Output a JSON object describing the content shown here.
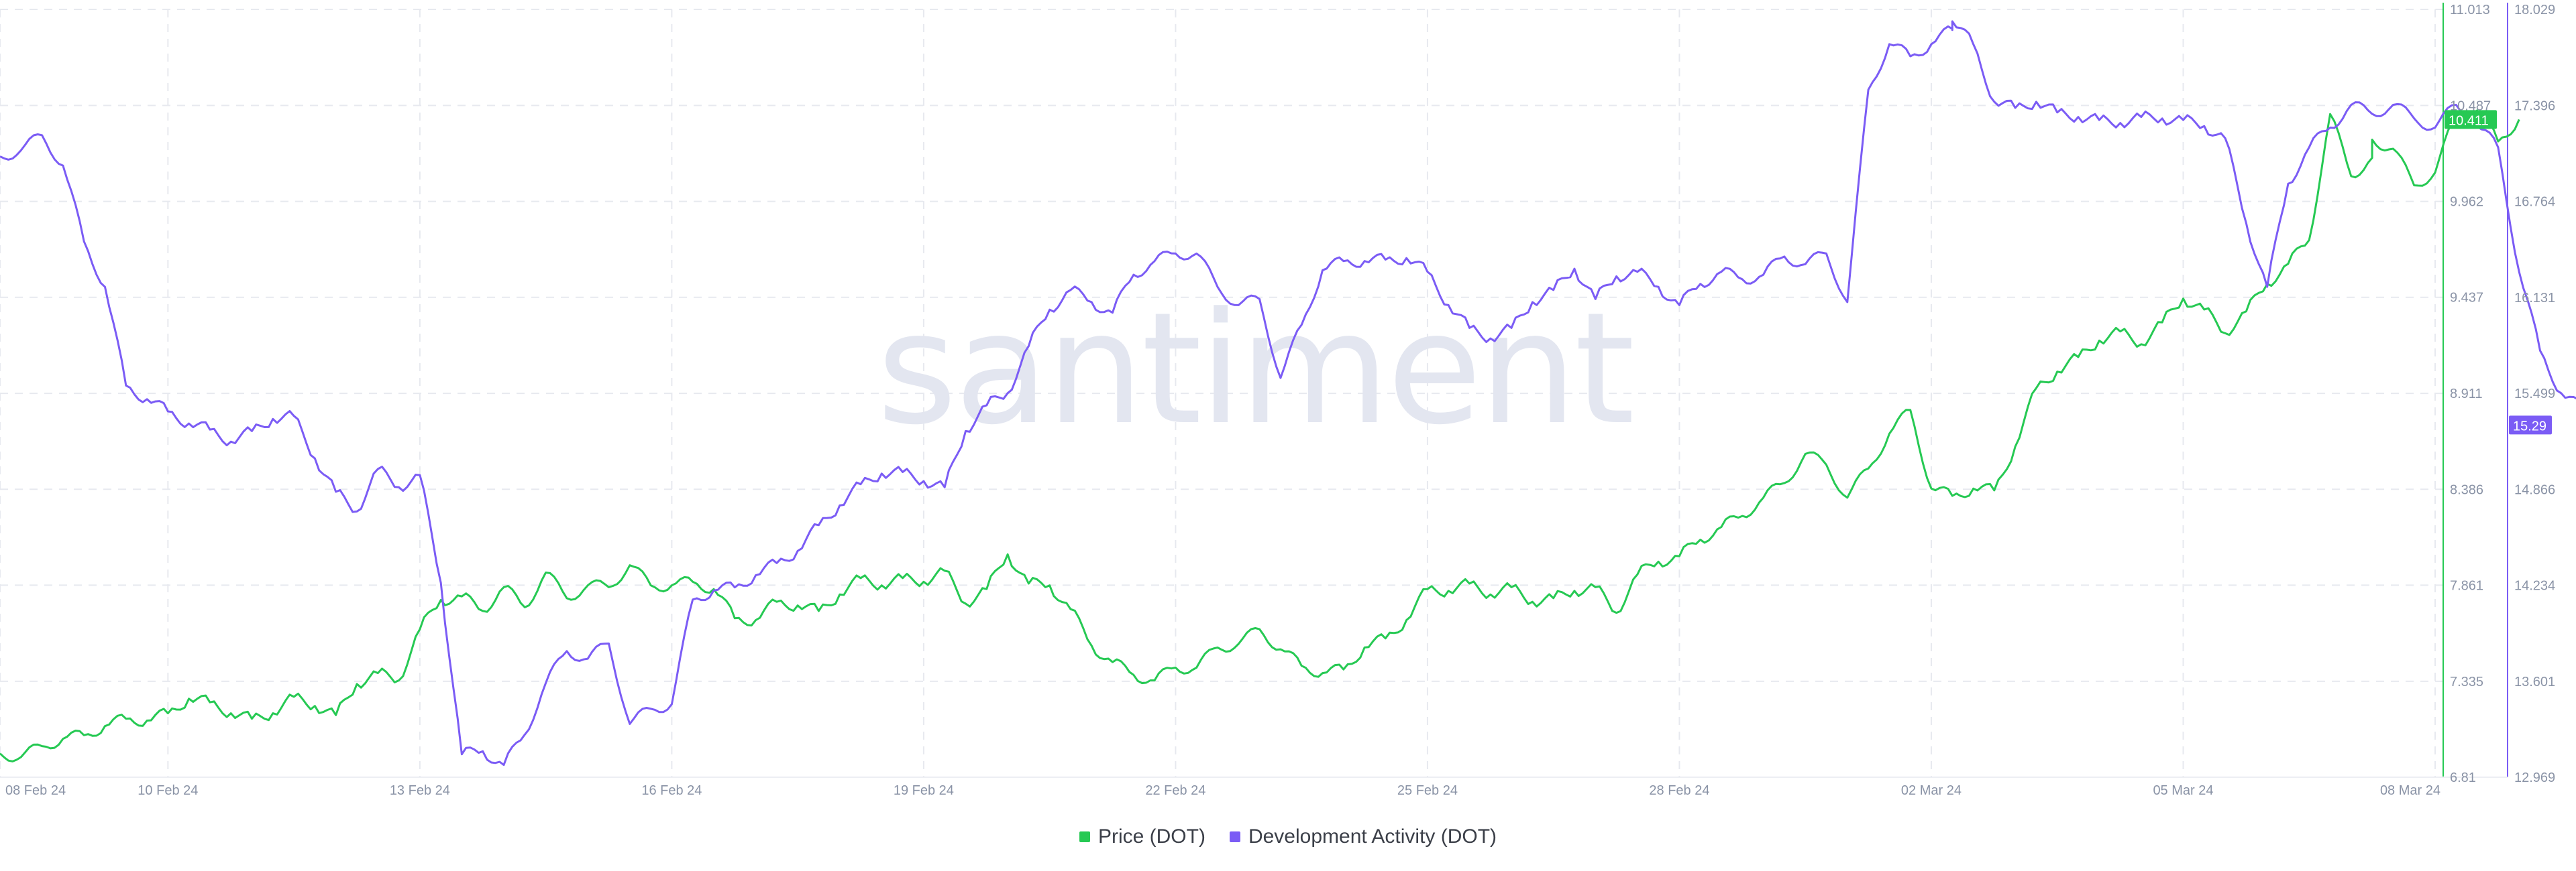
{
  "chart_data": {
    "type": "line",
    "watermark": "santiment",
    "x_axis": {
      "range": [
        "2024-02-08",
        "2024-03-08"
      ],
      "tick_labels": [
        "08 Feb 24",
        "10 Feb 24",
        "13 Feb 24",
        "16 Feb 24",
        "19 Feb 24",
        "22 Feb 24",
        "25 Feb 24",
        "28 Feb 24",
        "02 Mar 24",
        "05 Mar 24",
        "08 Mar 24"
      ],
      "grid": true
    },
    "y_axes": [
      {
        "id": "price",
        "ticks": [
          "11.013",
          "10.487",
          "9.962",
          "9.437",
          "8.911",
          "8.386",
          "7.861",
          "7.335",
          "6.81"
        ],
        "range": [
          6.81,
          11.013
        ],
        "color": "#26c953"
      },
      {
        "id": "dev",
        "ticks": [
          "18.029",
          "17.396",
          "16.764",
          "16.131",
          "15.499",
          "14.866",
          "14.234",
          "13.601",
          "12.969"
        ],
        "range": [
          12.969,
          18.029
        ],
        "color": "#7b5cf5"
      }
    ],
    "legend_position": "bottom-center",
    "series": [
      {
        "name": "Price (DOT)",
        "axis": "price",
        "color": "#26c953",
        "last_value_label": "10.411",
        "points": [
          [
            0,
            6.94
          ],
          [
            0.25,
            6.92
          ],
          [
            0.5,
            6.98
          ],
          [
            0.75,
            7.02
          ],
          [
            1,
            7.04
          ],
          [
            1.25,
            7.09
          ],
          [
            1.5,
            7.13
          ],
          [
            1.75,
            7.12
          ],
          [
            2,
            7.16
          ],
          [
            2.25,
            7.24
          ],
          [
            2.5,
            7.22
          ],
          [
            2.75,
            7.16
          ],
          [
            3,
            7.13
          ],
          [
            3.25,
            7.16
          ],
          [
            3.5,
            7.25
          ],
          [
            3.75,
            7.2
          ],
          [
            4,
            7.15
          ],
          [
            4.25,
            7.32
          ],
          [
            4.5,
            7.38
          ],
          [
            4.75,
            7.34
          ],
          [
            5,
            7.62
          ],
          [
            5.25,
            7.78
          ],
          [
            5.5,
            7.8
          ],
          [
            5.75,
            7.72
          ],
          [
            6,
            7.85
          ],
          [
            6.25,
            7.74
          ],
          [
            6.5,
            7.93
          ],
          [
            6.75,
            7.79
          ],
          [
            7,
            7.86
          ],
          [
            7.25,
            7.85
          ],
          [
            7.5,
            7.97
          ],
          [
            7.75,
            7.86
          ],
          [
            8,
            7.86
          ],
          [
            8.25,
            7.88
          ],
          [
            8.5,
            7.84
          ],
          [
            8.75,
            7.68
          ],
          [
            9,
            7.67
          ],
          [
            9.25,
            7.77
          ],
          [
            9.5,
            7.75
          ],
          [
            9.75,
            7.72
          ],
          [
            10,
            7.81
          ],
          [
            10.25,
            7.9
          ],
          [
            10.5,
            7.86
          ],
          [
            10.75,
            7.9
          ],
          [
            11,
            7.88
          ],
          [
            11.25,
            7.94
          ],
          [
            11.5,
            7.76
          ],
          [
            11.75,
            7.84
          ],
          [
            12,
            8.03
          ],
          [
            12.25,
            7.87
          ],
          [
            12.5,
            7.86
          ],
          [
            12.75,
            7.73
          ],
          [
            13,
            7.53
          ],
          [
            13.25,
            7.44
          ],
          [
            13.5,
            7.37
          ],
          [
            13.75,
            7.34
          ],
          [
            14,
            7.41
          ],
          [
            14.25,
            7.41
          ],
          [
            14.5,
            7.52
          ],
          [
            14.75,
            7.54
          ],
          [
            15,
            7.62
          ],
          [
            15.25,
            7.51
          ],
          [
            15.5,
            7.42
          ],
          [
            15.75,
            7.38
          ],
          [
            16,
            7.4
          ],
          [
            16.25,
            7.52
          ],
          [
            16.5,
            7.57
          ],
          [
            16.75,
            7.67
          ],
          [
            17,
            7.84
          ],
          [
            17.25,
            7.83
          ],
          [
            17.5,
            7.87
          ],
          [
            17.75,
            7.81
          ],
          [
            18,
            7.85
          ],
          [
            18.25,
            7.77
          ],
          [
            18.5,
            7.79
          ],
          [
            18.75,
            7.83
          ],
          [
            19,
            7.85
          ],
          [
            19.25,
            7.71
          ],
          [
            19.5,
            7.92
          ],
          [
            19.75,
            7.99
          ],
          [
            20,
            8.02
          ],
          [
            20.25,
            8.11
          ],
          [
            20.5,
            8.18
          ],
          [
            20.75,
            8.24
          ],
          [
            21,
            8.34
          ],
          [
            21.25,
            8.42
          ],
          [
            21.5,
            8.58
          ],
          [
            21.75,
            8.52
          ],
          [
            22,
            8.34
          ],
          [
            22.25,
            8.5
          ],
          [
            22.5,
            8.69
          ],
          [
            22.75,
            8.82
          ],
          [
            23,
            8.39
          ],
          [
            23.25,
            8.35
          ],
          [
            23.5,
            8.39
          ],
          [
            23.75,
            8.38
          ],
          [
            24,
            8.62
          ],
          [
            24.25,
            8.94
          ],
          [
            24.5,
            9.03
          ],
          [
            24.75,
            9.11
          ],
          [
            25,
            9.2
          ],
          [
            25.25,
            9.25
          ],
          [
            25.5,
            9.18
          ],
          [
            25.75,
            9.3
          ],
          [
            26,
            9.43
          ],
          [
            26.25,
            9.37
          ],
          [
            26.5,
            9.24
          ],
          [
            26.75,
            9.36
          ],
          [
            27,
            9.51
          ],
          [
            27.25,
            9.62
          ],
          [
            27.5,
            9.75
          ],
          [
            27.75,
            10.44
          ],
          [
            28,
            10.1
          ],
          [
            28.25,
            10.2
          ],
          [
            28.25,
            10.3
          ],
          [
            28.5,
            10.25
          ],
          [
            28.75,
            10.05
          ],
          [
            29,
            10.12
          ],
          [
            29.25,
            10.44
          ],
          [
            29.5,
            10.46
          ],
          [
            29.75,
            10.29
          ],
          [
            30,
            10.41
          ]
        ]
      },
      {
        "name": "Development Activity (DOT)",
        "axis": "dev",
        "color": "#7b5cf5",
        "last_value_label": "15.29",
        "points": [
          [
            0,
            17.06
          ],
          [
            0.25,
            17.1
          ],
          [
            0.5,
            17.2
          ],
          [
            0.75,
            17.0
          ],
          [
            1,
            16.5
          ],
          [
            1.25,
            16.2
          ],
          [
            1.5,
            15.55
          ],
          [
            1.75,
            15.46
          ],
          [
            2,
            15.38
          ],
          [
            2.25,
            15.3
          ],
          [
            2.5,
            15.26
          ],
          [
            2.75,
            15.18
          ],
          [
            3,
            15.25
          ],
          [
            3.25,
            15.33
          ],
          [
            3.5,
            15.35
          ],
          [
            3.75,
            15.07
          ],
          [
            4,
            14.85
          ],
          [
            4.25,
            14.72
          ],
          [
            4.5,
            15.0
          ],
          [
            4.75,
            14.88
          ],
          [
            5,
            14.96
          ],
          [
            5.25,
            14.25
          ],
          [
            5.5,
            13.12
          ],
          [
            5.75,
            13.14
          ],
          [
            6,
            13.05
          ],
          [
            6.25,
            13.25
          ],
          [
            6.5,
            13.59
          ],
          [
            6.75,
            13.8
          ],
          [
            7,
            13.75
          ],
          [
            7.25,
            13.85
          ],
          [
            7.5,
            13.32
          ],
          [
            7.75,
            13.42
          ],
          [
            8,
            13.45
          ],
          [
            8.25,
            14.14
          ],
          [
            8.5,
            14.2
          ],
          [
            8.75,
            14.22
          ],
          [
            9,
            14.3
          ],
          [
            9.25,
            14.38
          ],
          [
            9.5,
            14.46
          ],
          [
            9.75,
            14.63
          ],
          [
            10,
            14.76
          ],
          [
            10.25,
            14.9
          ],
          [
            10.5,
            14.97
          ],
          [
            10.75,
            14.98
          ],
          [
            11,
            14.92
          ],
          [
            11.25,
            14.88
          ],
          [
            11.5,
            15.25
          ],
          [
            11.75,
            15.42
          ],
          [
            12,
            15.5
          ],
          [
            12.25,
            15.81
          ],
          [
            12.5,
            16.05
          ],
          [
            12.75,
            16.18
          ],
          [
            13,
            16.1
          ],
          [
            13.25,
            16.03
          ],
          [
            13.5,
            16.28
          ],
          [
            13.75,
            16.37
          ],
          [
            14,
            16.42
          ],
          [
            14.25,
            16.42
          ],
          [
            14.5,
            16.2
          ],
          [
            14.75,
            16.08
          ],
          [
            15,
            16.12
          ],
          [
            15.25,
            15.6
          ],
          [
            15.5,
            15.95
          ],
          [
            15.75,
            16.31
          ],
          [
            16,
            16.37
          ],
          [
            16.25,
            16.37
          ],
          [
            16.5,
            16.38
          ],
          [
            16.75,
            16.39
          ],
          [
            17,
            16.3
          ],
          [
            17.25,
            16.08
          ],
          [
            17.5,
            15.93
          ],
          [
            17.75,
            15.86
          ],
          [
            18,
            15.93
          ],
          [
            18.25,
            16.1
          ],
          [
            18.5,
            16.18
          ],
          [
            18.75,
            16.32
          ],
          [
            19,
            16.12
          ],
          [
            19.25,
            16.27
          ],
          [
            19.5,
            16.3
          ],
          [
            19.75,
            16.2
          ],
          [
            20,
            16.08
          ],
          [
            20.25,
            16.22
          ],
          [
            20.5,
            16.3
          ],
          [
            20.75,
            16.25
          ],
          [
            21,
            16.28
          ],
          [
            21.25,
            16.4
          ],
          [
            21.5,
            16.35
          ],
          [
            21.75,
            16.42
          ],
          [
            22,
            16.1
          ],
          [
            22.25,
            17.5
          ],
          [
            22.5,
            17.8
          ],
          [
            22.75,
            17.72
          ],
          [
            23,
            17.8
          ],
          [
            23.25,
            17.9
          ],
          [
            23.25,
            17.95
          ],
          [
            23.5,
            17.8
          ],
          [
            23.75,
            17.42
          ],
          [
            24,
            17.38
          ],
          [
            24.25,
            17.42
          ],
          [
            24.5,
            17.35
          ],
          [
            24.75,
            17.32
          ],
          [
            25,
            17.3
          ],
          [
            25.25,
            17.28
          ],
          [
            25.5,
            17.32
          ],
          [
            25.75,
            17.31
          ],
          [
            26,
            17.3
          ],
          [
            26.25,
            17.26
          ],
          [
            26.5,
            17.18
          ],
          [
            26.75,
            16.62
          ],
          [
            27,
            16.2
          ],
          [
            27.25,
            16.88
          ],
          [
            27.5,
            17.12
          ],
          [
            27.75,
            17.25
          ],
          [
            28,
            17.4
          ],
          [
            28.25,
            17.34
          ],
          [
            28.5,
            17.4
          ],
          [
            28.75,
            17.31
          ],
          [
            29,
            17.25
          ],
          [
            29.25,
            17.4
          ],
          [
            29.5,
            17.26
          ],
          [
            29.75,
            17.12
          ],
          [
            30,
            16.3
          ],
          [
            30.25,
            15.78
          ],
          [
            30.5,
            15.5
          ],
          [
            30.75,
            15.4
          ],
          [
            31,
            15.31
          ],
          [
            31.25,
            15.29
          ]
        ]
      }
    ]
  }
}
